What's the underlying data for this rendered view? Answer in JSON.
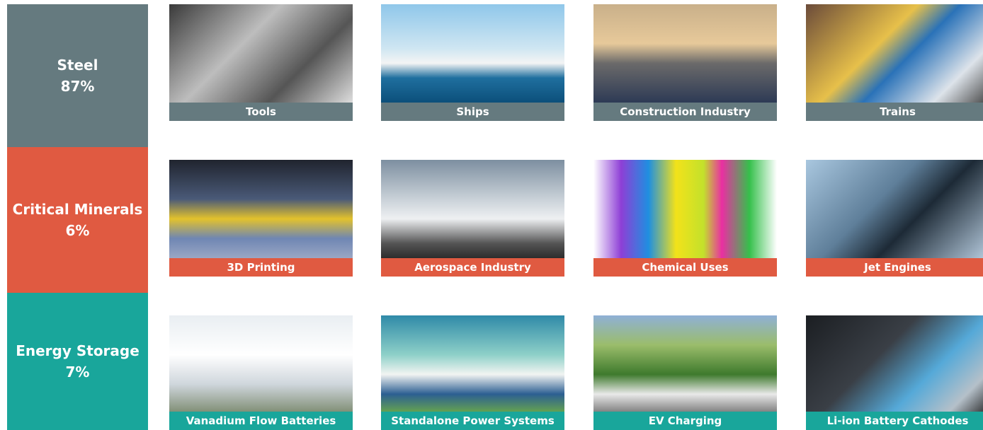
{
  "groups": [
    {
      "label": "Steel",
      "share": "87%",
      "items": [
        "Tools",
        "Ships",
        "Construction Industry",
        "Trains"
      ]
    },
    {
      "label": "Critical Minerals",
      "share": "6%",
      "items": [
        "3D Printing",
        "Aerospace Industry",
        "Chemical Uses",
        "Jet Engines"
      ]
    },
    {
      "label": "Energy Storage",
      "share": "7%",
      "items": [
        "Vanadium Flow Batteries",
        "Standalone Power Systems",
        "EV Charging",
        "Li-ion Battery Cathodes"
      ]
    }
  ]
}
